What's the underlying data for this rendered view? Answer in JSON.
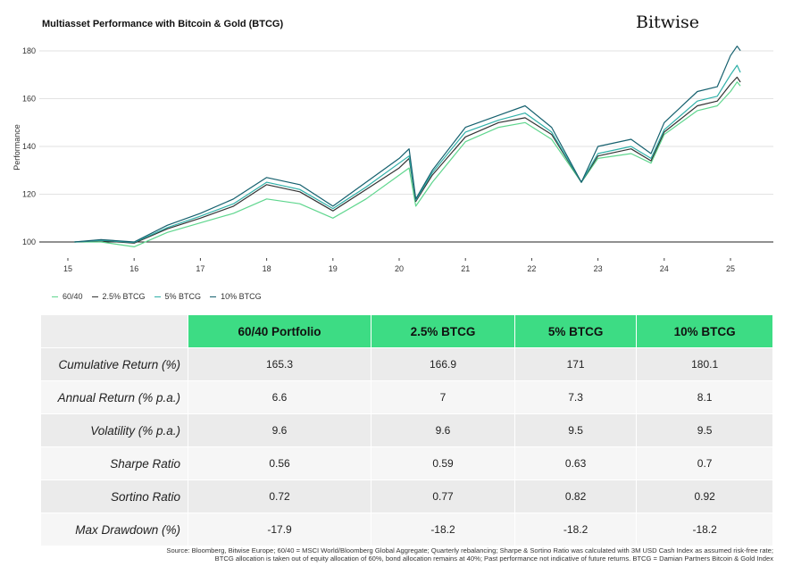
{
  "header": {
    "title": "Multiasset Performance with Bitcoin & Gold (BTCG)",
    "logo": "Bitwise"
  },
  "chart_data": {
    "type": "line",
    "title": "Multiasset Performance with Bitcoin & Gold (BTCG)",
    "xlabel": "",
    "ylabel": "Performance",
    "xlim": [
      2014.8,
      2025.4
    ],
    "ylim": [
      97,
      184
    ],
    "xticks": [
      "15",
      "16",
      "17",
      "18",
      "19",
      "20",
      "21",
      "22",
      "23",
      "24",
      "25"
    ],
    "yticks": [
      100,
      120,
      140,
      160,
      180
    ],
    "grid": "horizontal",
    "legend": "bottom-left",
    "x": [
      2015.1,
      2015.5,
      2016.0,
      2016.5,
      2017.0,
      2017.5,
      2018.0,
      2018.5,
      2019.0,
      2019.5,
      2020.0,
      2020.15,
      2020.25,
      2020.5,
      2021.0,
      2021.5,
      2021.9,
      2022.3,
      2022.75,
      2023.0,
      2023.5,
      2023.8,
      2024.0,
      2024.5,
      2024.8,
      2025.0,
      2025.1,
      2025.15
    ],
    "series": [
      {
        "name": "60/40",
        "color": "#5fd68e",
        "values": [
          100,
          100,
          98,
          104,
          108,
          112,
          118,
          116,
          110,
          118,
          128,
          131,
          115,
          125,
          142,
          148,
          150,
          143,
          125,
          135,
          137,
          133,
          145,
          155,
          157,
          163,
          167,
          165.3
        ]
      },
      {
        "name": "2.5% BTCG",
        "color": "#333333",
        "values": [
          100,
          100.5,
          99.5,
          105.5,
          110,
          115,
          124,
          121,
          113,
          122,
          131,
          135,
          117,
          128,
          144,
          150,
          152,
          145,
          125,
          136,
          139,
          134,
          146,
          157,
          159,
          166,
          169,
          166.9
        ]
      },
      {
        "name": "5% BTCG",
        "color": "#2fb0a8",
        "values": [
          100,
          100.7,
          99.8,
          106,
          110.8,
          116,
          125,
          122,
          114,
          123,
          133,
          136,
          117.5,
          129,
          146,
          151,
          154,
          146,
          125,
          137,
          140,
          135,
          147,
          159,
          161,
          170,
          174,
          171
        ]
      },
      {
        "name": "10% BTCG",
        "color": "#15606e",
        "values": [
          100,
          101,
          100,
          107,
          112,
          118,
          127,
          124,
          115,
          125,
          135,
          139,
          118,
          130,
          148,
          153,
          157,
          148,
          125,
          140,
          143,
          137,
          150,
          163,
          165,
          178,
          182,
          180.1
        ]
      }
    ]
  },
  "table": {
    "headers": [
      "60/40 Portfolio",
      "2.5% BTCG",
      "5% BTCG",
      "10% BTCG"
    ],
    "rows": [
      {
        "label": "Cumulative Return (%)",
        "values": [
          "165.3",
          "166.9",
          "171",
          "180.1"
        ]
      },
      {
        "label": "Annual Return (% p.a.)",
        "values": [
          "6.6",
          "7",
          "7.3",
          "8.1"
        ]
      },
      {
        "label": "Volatility (% p.a.)",
        "values": [
          "9.6",
          "9.6",
          "9.5",
          "9.5"
        ]
      },
      {
        "label": "Sharpe Ratio",
        "values": [
          "0.56",
          "0.59",
          "0.63",
          "0.7"
        ]
      },
      {
        "label": "Sortino Ratio",
        "values": [
          "0.72",
          "0.77",
          "0.82",
          "0.92"
        ]
      },
      {
        "label": "Max Drawdown (%)",
        "values": [
          "-17.9",
          "-18.2",
          "-18.2",
          "-18.2"
        ]
      }
    ]
  },
  "source": [
    "Source: Bloomberg, Bitwise Europe; 60/40 = MSCI World/Bloomberg Global Aggregate; Quarterly rebalancing; Sharpe & Sortino Ratio was calculated with 3M USD Cash Index as assumed risk-free rate;",
    "BTCG allocation is taken out of equity allocation of 60%, bond allocation remains at 40%; Past performance not indicative of future returns. BTCG = Damian Partners Bitcoin & Gold Index"
  ]
}
